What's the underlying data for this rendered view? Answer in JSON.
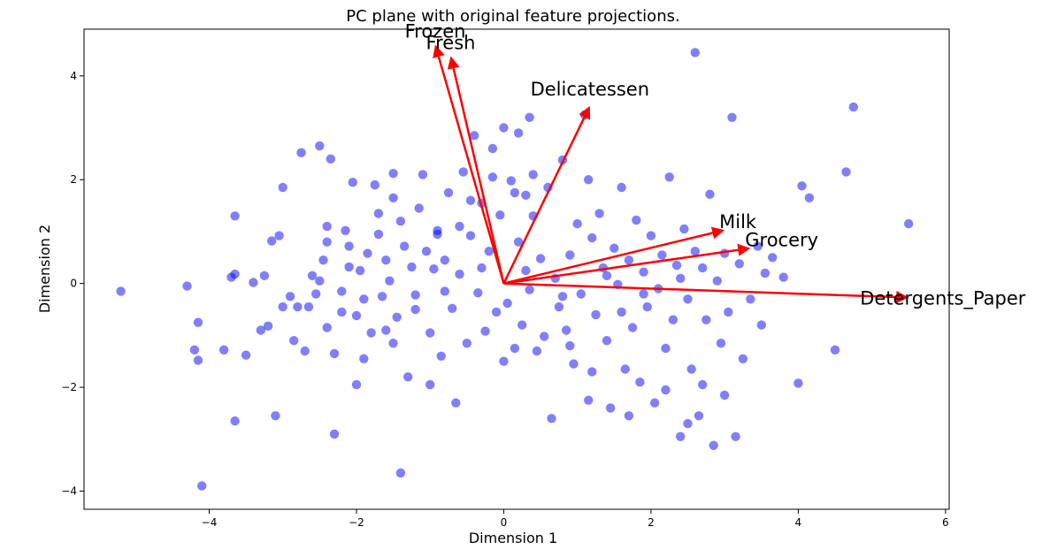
{
  "chart_data": {
    "type": "scatter",
    "title": "PC plane with original feature projections.",
    "xlabel": "Dimension 1",
    "ylabel": "Dimension 2",
    "xlim": [
      -5.7,
      6.05
    ],
    "ylim": [
      -4.35,
      4.9
    ],
    "x_ticks": [
      -4,
      -2,
      0,
      2,
      4,
      6
    ],
    "y_ticks": [
      -4,
      -2,
      0,
      2,
      4
    ],
    "x_tick_labels": [
      "−4",
      "−2",
      "0",
      "2",
      "4",
      "6"
    ],
    "y_tick_labels": [
      "−4",
      "−2",
      "0",
      "2",
      "4"
    ],
    "grid": false,
    "point_color": "#0000ff",
    "point_opacity": 0.5,
    "arrow_color": "#ff0000",
    "points": [
      [
        -5.2,
        -0.15
      ],
      [
        -4.3,
        -0.05
      ],
      [
        -4.15,
        -0.75
      ],
      [
        -4.2,
        -1.28
      ],
      [
        -4.15,
        -1.48
      ],
      [
        -4.1,
        -3.9
      ],
      [
        -3.8,
        -1.28
      ],
      [
        -3.7,
        0.12
      ],
      [
        -3.65,
        0.18
      ],
      [
        -3.65,
        1.3
      ],
      [
        -3.65,
        -2.65
      ],
      [
        -3.5,
        -1.38
      ],
      [
        -3.4,
        0.02
      ],
      [
        -3.3,
        -0.9
      ],
      [
        -3.25,
        0.15
      ],
      [
        -3.2,
        -0.82
      ],
      [
        -3.15,
        0.82
      ],
      [
        -3.1,
        -2.55
      ],
      [
        -3.05,
        0.92
      ],
      [
        -3.0,
        1.85
      ],
      [
        -3.0,
        -0.45
      ],
      [
        -2.9,
        -0.25
      ],
      [
        -2.85,
        -1.1
      ],
      [
        -2.8,
        -0.45
      ],
      [
        -2.75,
        2.52
      ],
      [
        -2.7,
        -1.3
      ],
      [
        -2.65,
        -0.45
      ],
      [
        -2.55,
        -0.2
      ],
      [
        -2.5,
        0.05
      ],
      [
        -2.5,
        2.65
      ],
      [
        -2.45,
        0.45
      ],
      [
        -2.4,
        -0.85
      ],
      [
        -2.4,
        0.8
      ],
      [
        -2.35,
        2.4
      ],
      [
        -2.3,
        -1.35
      ],
      [
        -2.3,
        -2.9
      ],
      [
        -2.2,
        -0.15
      ],
      [
        -2.15,
        1.02
      ],
      [
        -2.1,
        0.32
      ],
      [
        -2.1,
        0.72
      ],
      [
        -2.05,
        1.95
      ],
      [
        -2.0,
        -0.62
      ],
      [
        -2.0,
        -1.95
      ],
      [
        -1.95,
        0.25
      ],
      [
        -1.9,
        -1.45
      ],
      [
        -1.85,
        0.58
      ],
      [
        -1.8,
        -0.95
      ],
      [
        -1.75,
        1.9
      ],
      [
        -1.7,
        1.35
      ],
      [
        -1.65,
        -0.25
      ],
      [
        -1.6,
        0.45
      ],
      [
        -1.55,
        0.05
      ],
      [
        -1.5,
        -1.15
      ],
      [
        -1.5,
        2.12
      ],
      [
        -1.45,
        -0.65
      ],
      [
        -1.4,
        1.2
      ],
      [
        -1.35,
        0.72
      ],
      [
        -1.3,
        -1.8
      ],
      [
        -1.25,
        0.32
      ],
      [
        -1.2,
        -0.22
      ],
      [
        -1.15,
        1.45
      ],
      [
        -1.1,
        2.1
      ],
      [
        -1.05,
        0.62
      ],
      [
        -1.0,
        -0.95
      ],
      [
        -0.95,
        0.28
      ],
      [
        -0.9,
        1.02
      ],
      [
        -0.85,
        -1.4
      ],
      [
        -0.8,
        0.45
      ],
      [
        -0.75,
        1.75
      ],
      [
        -0.7,
        -0.48
      ],
      [
        -0.65,
        -2.3
      ],
      [
        -0.6,
        0.18
      ],
      [
        -0.55,
        2.15
      ],
      [
        -0.5,
        -1.15
      ],
      [
        -0.45,
        0.92
      ],
      [
        -0.4,
        2.85
      ],
      [
        -0.35,
        -0.18
      ],
      [
        -0.3,
        1.55
      ],
      [
        -0.25,
        -0.92
      ],
      [
        -0.2,
        0.62
      ],
      [
        -0.15,
        2.6
      ],
      [
        -0.1,
        -0.55
      ],
      [
        -0.05,
        1.32
      ],
      [
        0.0,
        3.0
      ],
      [
        0.05,
        -0.38
      ],
      [
        0.1,
        1.98
      ],
      [
        0.15,
        -1.25
      ],
      [
        0.2,
        0.8
      ],
      [
        0.25,
        -0.8
      ],
      [
        0.3,
        1.7
      ],
      [
        0.35,
        -0.12
      ],
      [
        0.4,
        2.1
      ],
      [
        0.45,
        -1.3
      ],
      [
        0.5,
        0.48
      ],
      [
        0.55,
        -1.02
      ],
      [
        0.6,
        1.85
      ],
      [
        0.65,
        -2.6
      ],
      [
        0.7,
        0.1
      ],
      [
        0.75,
        -0.45
      ],
      [
        0.8,
        2.38
      ],
      [
        0.85,
        -0.9
      ],
      [
        0.9,
        0.55
      ],
      [
        0.95,
        -1.55
      ],
      [
        1.0,
        1.15
      ],
      [
        1.05,
        -0.2
      ],
      [
        1.1,
        3.25
      ],
      [
        1.15,
        -2.25
      ],
      [
        1.2,
        0.88
      ],
      [
        1.25,
        -0.6
      ],
      [
        1.3,
        1.35
      ],
      [
        1.35,
        0.3
      ],
      [
        1.4,
        -1.1
      ],
      [
        1.45,
        -2.4
      ],
      [
        1.5,
        0.68
      ],
      [
        1.55,
        -0.02
      ],
      [
        1.6,
        1.85
      ],
      [
        1.65,
        -1.65
      ],
      [
        1.7,
        0.45
      ],
      [
        1.75,
        -0.85
      ],
      [
        1.8,
        1.22
      ],
      [
        1.85,
        -1.9
      ],
      [
        1.9,
        0.22
      ],
      [
        1.95,
        -0.45
      ],
      [
        2.0,
        0.92
      ],
      [
        2.05,
        -2.3
      ],
      [
        2.1,
        -0.1
      ],
      [
        2.15,
        0.55
      ],
      [
        2.2,
        -1.25
      ],
      [
        2.25,
        2.05
      ],
      [
        2.3,
        -0.7
      ],
      [
        2.35,
        0.35
      ],
      [
        2.4,
        -2.95
      ],
      [
        2.45,
        1.05
      ],
      [
        2.5,
        -0.3
      ],
      [
        2.55,
        -1.65
      ],
      [
        2.6,
        0.62
      ],
      [
        2.6,
        4.45
      ],
      [
        2.65,
        -2.55
      ],
      [
        2.7,
        0.3
      ],
      [
        2.75,
        -0.7
      ],
      [
        2.8,
        1.72
      ],
      [
        2.85,
        -3.12
      ],
      [
        2.9,
        0.05
      ],
      [
        2.95,
        -1.15
      ],
      [
        3.0,
        0.58
      ],
      [
        3.05,
        -0.55
      ],
      [
        3.1,
        3.2
      ],
      [
        3.15,
        -2.95
      ],
      [
        3.2,
        0.38
      ],
      [
        3.25,
        -1.45
      ],
      [
        3.35,
        -0.3
      ],
      [
        3.45,
        0.72
      ],
      [
        3.55,
        0.2
      ],
      [
        3.65,
        0.5
      ],
      [
        3.8,
        0.12
      ],
      [
        4.0,
        -1.92
      ],
      [
        4.05,
        1.88
      ],
      [
        4.15,
        1.65
      ],
      [
        4.5,
        -1.28
      ],
      [
        4.65,
        2.15
      ],
      [
        4.75,
        3.4
      ],
      [
        5.5,
        1.15
      ],
      [
        -1.9,
        -0.3
      ],
      [
        -1.2,
        -0.5
      ],
      [
        -0.8,
        -0.15
      ],
      [
        -0.3,
        0.3
      ],
      [
        0.3,
        0.25
      ],
      [
        0.8,
        -0.25
      ],
      [
        1.4,
        0.15
      ],
      [
        1.9,
        -0.2
      ],
      [
        2.4,
        0.1
      ],
      [
        -2.6,
        0.15
      ],
      [
        -1.5,
        1.65
      ],
      [
        -0.6,
        1.1
      ],
      [
        0.4,
        1.3
      ],
      [
        1.2,
        -1.7
      ],
      [
        1.7,
        -2.55
      ],
      [
        2.2,
        -2.05
      ],
      [
        -1.0,
        -1.95
      ],
      [
        0.0,
        -1.5
      ],
      [
        -2.2,
        -0.55
      ],
      [
        -1.7,
        0.95
      ],
      [
        -0.9,
        0.95
      ],
      [
        0.9,
        -1.2
      ],
      [
        1.6,
        -0.55
      ],
      [
        2.7,
        -1.95
      ],
      [
        -1.4,
        -3.65
      ],
      [
        -2.4,
        1.1
      ],
      [
        -1.6,
        -0.9
      ],
      [
        3.5,
        -0.8
      ],
      [
        3.0,
        -2.15
      ],
      [
        2.5,
        -2.7
      ],
      [
        0.35,
        3.2
      ],
      [
        -0.15,
        2.05
      ],
      [
        1.15,
        2.0
      ],
      [
        -0.45,
        1.6
      ],
      [
        0.2,
        2.9
      ],
      [
        0.15,
        1.75
      ]
    ],
    "arrows": [
      {
        "label": "Frozen",
        "dx": -0.93,
        "dy": 4.6
      },
      {
        "label": "Fresh",
        "dx": -0.72,
        "dy": 4.38
      },
      {
        "label": "Delicatessen",
        "dx": 1.17,
        "dy": 3.42
      },
      {
        "label": "Milk",
        "dx": 3.0,
        "dy": 1.03
      },
      {
        "label": "Grocery",
        "dx": 3.35,
        "dy": 0.68
      },
      {
        "label": "Detergents_Paper",
        "dx": 5.5,
        "dy": -0.27
      }
    ]
  }
}
